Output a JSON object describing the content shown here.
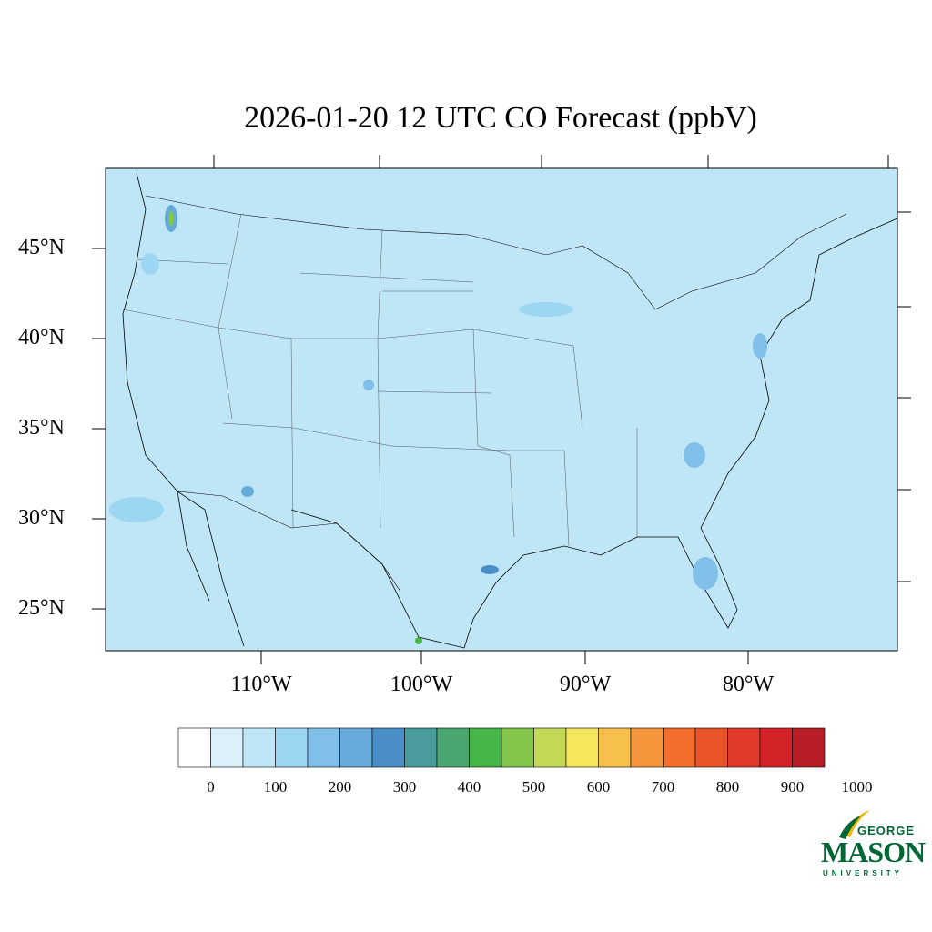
{
  "title": "2026-01-20 12 UTC CO Forecast (ppbV)",
  "lat_labels": [
    "45°N",
    "40°N",
    "35°N",
    "30°N",
    "25°N"
  ],
  "lon_labels": [
    "110°W",
    "100°W",
    "90°W",
    "80°W"
  ],
  "colorbar": {
    "labels": [
      "0",
      "100",
      "200",
      "300",
      "400",
      "500",
      "600",
      "700",
      "800",
      "900",
      "1000"
    ],
    "colors": [
      "#ffffff",
      "#dbf0fa",
      "#bfe6f7",
      "#9cd6f3",
      "#80c0e8",
      "#66a9db",
      "#4a8ec8",
      "#4a9c9c",
      "#4aa670",
      "#48b548",
      "#84c54c",
      "#c4d858",
      "#f6e65c",
      "#f7bf4b",
      "#f6963c",
      "#f26c2c",
      "#e9542b",
      "#e03a2a",
      "#d42229",
      "#b81e25",
      "#a81c22",
      "#8e1a1c"
    ]
  },
  "map": {
    "ocean_color": "#bfe6f7",
    "land_color": "#bfe6f7"
  },
  "logo": {
    "line1": "GEORGE",
    "line2": "MASON",
    "line3": "UNIVERSITY"
  }
}
